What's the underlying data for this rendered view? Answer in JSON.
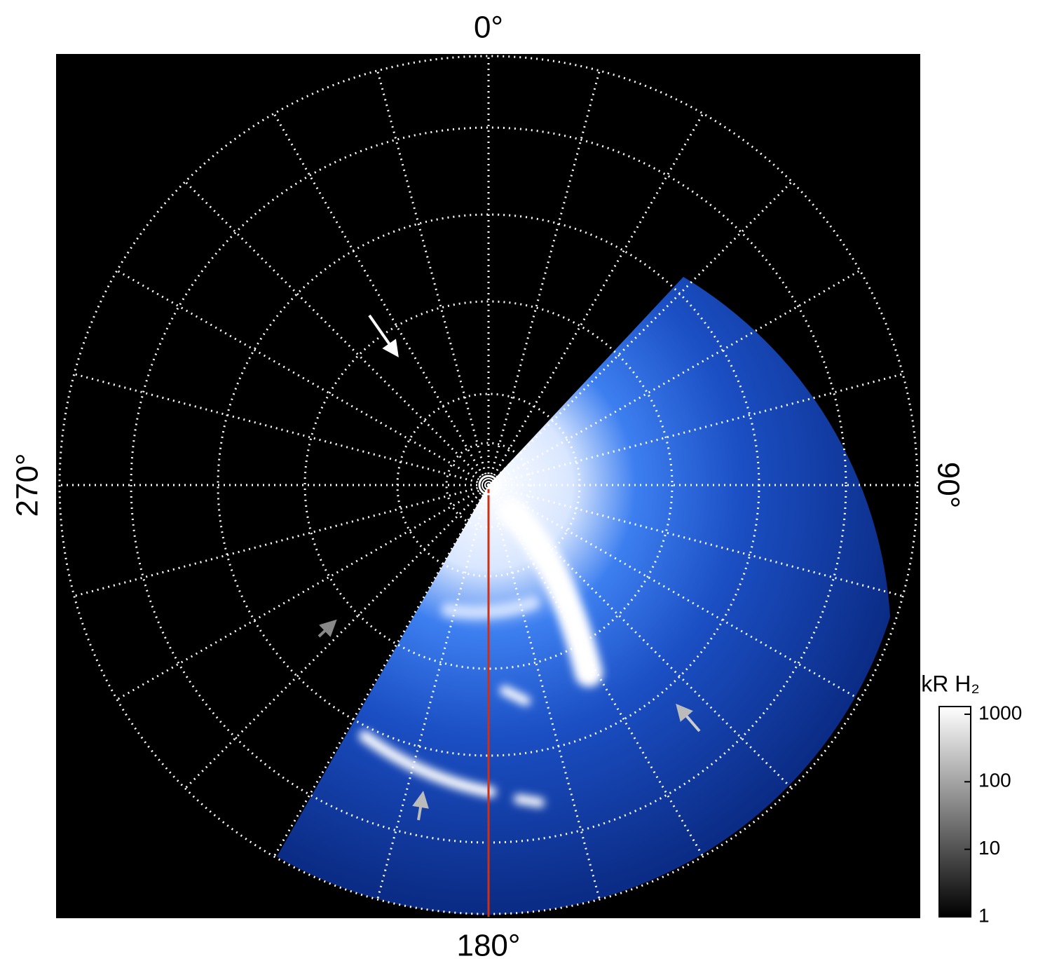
{
  "chart_data": {
    "type": "polar",
    "angle_labels": [
      "0°",
      "90°",
      "180°",
      "270°"
    ],
    "grid": true,
    "colorbar": {
      "label": "kR H₂",
      "scale": "log",
      "lim": [
        1,
        1300
      ],
      "ticks": [
        1,
        10,
        100,
        1000
      ]
    }
  }
}
